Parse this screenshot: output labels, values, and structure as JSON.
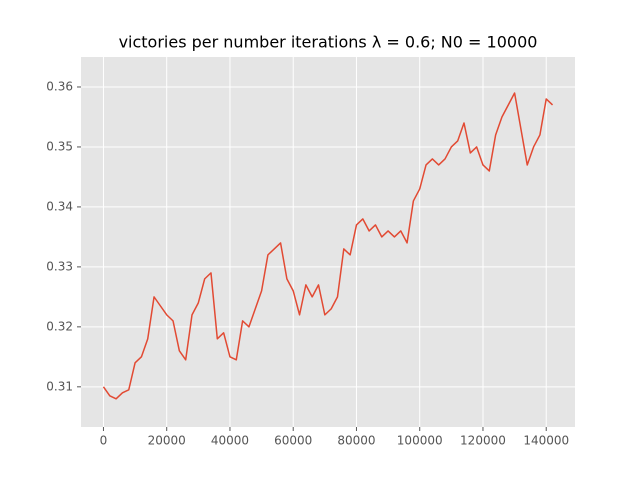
{
  "chart_data": {
    "type": "line",
    "title": "victories per number iterations λ = 0.6; N0 = 10000",
    "color": "#e24a33",
    "grid": true,
    "x": [
      0,
      2000,
      4000,
      6000,
      8000,
      10000,
      12000,
      14000,
      16000,
      18000,
      20000,
      22000,
      24000,
      26000,
      28000,
      30000,
      32000,
      34000,
      36000,
      38000,
      40000,
      42000,
      44000,
      46000,
      48000,
      50000,
      52000,
      54000,
      56000,
      58000,
      60000,
      62000,
      64000,
      66000,
      68000,
      70000,
      72000,
      74000,
      76000,
      78000,
      80000,
      82000,
      84000,
      86000,
      88000,
      90000,
      92000,
      94000,
      96000,
      98000,
      100000,
      102000,
      104000,
      106000,
      108000,
      110000,
      112000,
      114000,
      116000,
      118000,
      120000,
      122000,
      124000,
      126000,
      128000,
      130000,
      132000,
      134000,
      136000,
      138000,
      140000,
      142000
    ],
    "values": [
      0.31,
      0.3085,
      0.308,
      0.309,
      0.3095,
      0.314,
      0.315,
      0.318,
      0.325,
      0.3235,
      0.322,
      0.321,
      0.316,
      0.3145,
      0.322,
      0.324,
      0.328,
      0.329,
      0.318,
      0.319,
      0.315,
      0.3145,
      0.321,
      0.32,
      0.323,
      0.326,
      0.332,
      0.333,
      0.334,
      0.328,
      0.326,
      0.322,
      0.327,
      0.325,
      0.327,
      0.322,
      0.323,
      0.325,
      0.333,
      0.332,
      0.337,
      0.338,
      0.336,
      0.337,
      0.335,
      0.336,
      0.335,
      0.336,
      0.334,
      0.341,
      0.343,
      0.347,
      0.348,
      0.347,
      0.348,
      0.35,
      0.351,
      0.354,
      0.349,
      0.35,
      0.347,
      0.346,
      0.352,
      0.355,
      0.357,
      0.359,
      0.353,
      0.347,
      0.35,
      0.352,
      0.358,
      0.357
    ],
    "xlim": [
      -7100,
      149100
    ],
    "ylim": [
      0.3033,
      0.365
    ],
    "xticks": [
      0,
      20000,
      40000,
      60000,
      80000,
      100000,
      120000,
      140000
    ],
    "yticks": [
      0.31,
      0.32,
      0.33,
      0.34,
      0.35,
      0.36
    ]
  }
}
